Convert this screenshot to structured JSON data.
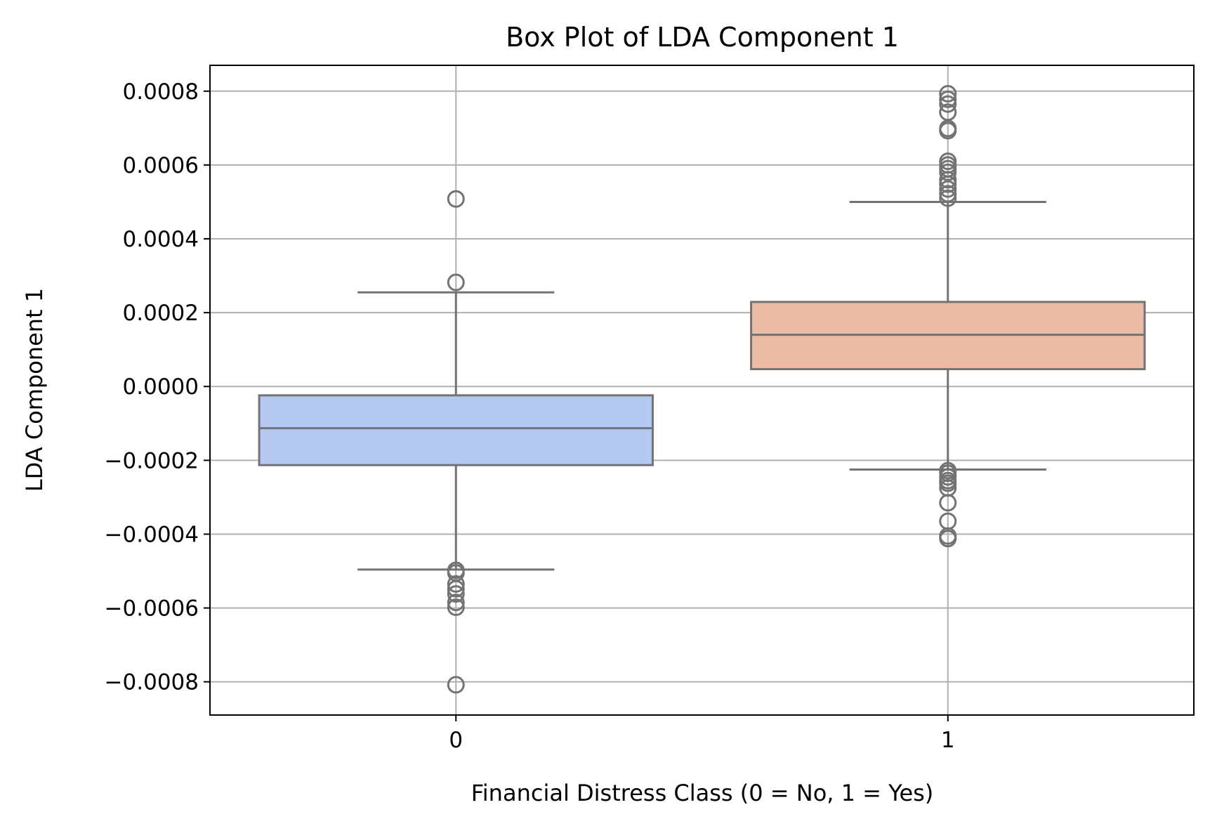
{
  "chart_data": {
    "type": "box",
    "title": "Box Plot of LDA Component 1",
    "xlabel": "Financial Distress Class (0 = No, 1 = Yes)",
    "ylabel": "LDA Component 1",
    "ylim": [
      -0.00089,
      0.00087
    ],
    "yticks": [
      -0.0008,
      -0.0006,
      -0.0004,
      -0.0002,
      0.0,
      0.0002,
      0.0004,
      0.0006,
      0.0008
    ],
    "ytick_labels": [
      "−0.0008",
      "−0.0006",
      "−0.0004",
      "−0.0002",
      "0.0000",
      "0.0002",
      "0.0004",
      "0.0006",
      "0.0008"
    ],
    "grid": true,
    "categories": [
      "0",
      "1"
    ],
    "boxes": [
      {
        "category": "0",
        "whisker_low": -0.000496,
        "q1": -0.000213,
        "median": -0.000113,
        "q3": -2.4e-05,
        "whisker_high": 0.000255,
        "fill": "#b4c8f2",
        "outliers": [
          0.000508,
          0.000282,
          -0.000498,
          -0.000505,
          -0.000535,
          -0.000548,
          -0.000562,
          -0.000585,
          -0.000598,
          -0.000808
        ]
      },
      {
        "category": "1",
        "whisker_low": -0.000225,
        "q1": 4.7e-05,
        "median": 0.00014,
        "q3": 0.000229,
        "whisker_high": 0.0005,
        "fill": "#ecbca6",
        "outliers": [
          0.000793,
          0.000778,
          0.000765,
          0.000743,
          0.000699,
          0.000693,
          0.00061,
          0.0006,
          0.00059,
          0.00058,
          0.00056,
          0.000548,
          0.000535,
          0.000522,
          0.00051,
          -0.000228,
          -0.000235,
          -0.000245,
          -0.000255,
          -0.000262,
          -0.000275,
          -0.000315,
          -0.000365,
          -0.000405,
          -0.000412
        ]
      }
    ],
    "colors": {
      "line": "#737373",
      "grid": "#b0b0b0",
      "frame": "#000000"
    }
  }
}
